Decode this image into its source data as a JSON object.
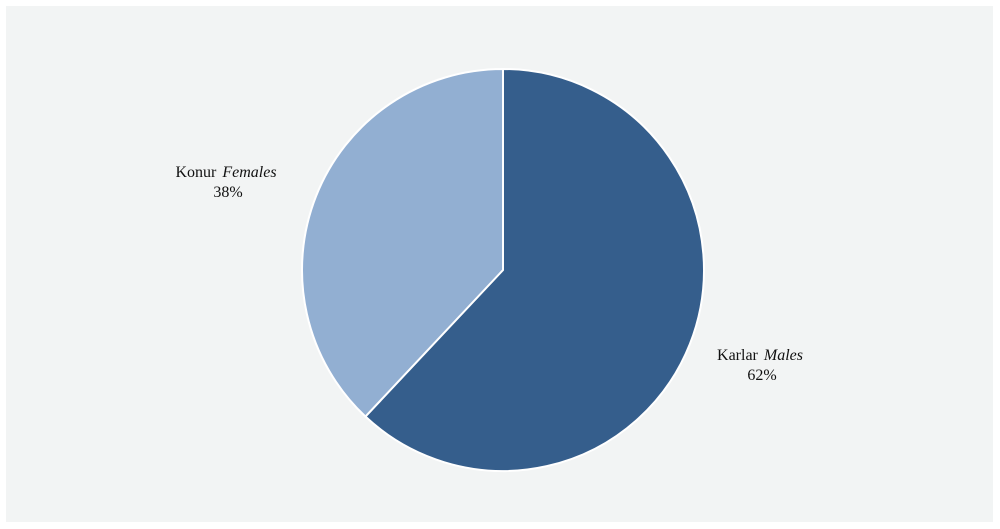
{
  "chart_data": {
    "type": "pie",
    "slices": [
      {
        "name": "Karlar",
        "name_alt": "Males",
        "value": 62,
        "value_label": "62%",
        "color": "#355e8c"
      },
      {
        "name": "Konur",
        "name_alt": "Females",
        "value": 38,
        "value_label": "38%",
        "color": "#92afd2"
      }
    ],
    "start_angle_deg": 0,
    "direction": "clockwise",
    "slice_border_color": "#ffffff",
    "background_color": "#f2f4f4",
    "title": "",
    "legend": "none"
  }
}
